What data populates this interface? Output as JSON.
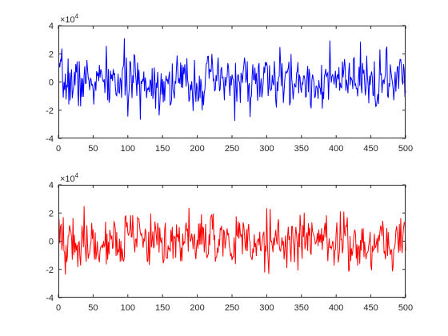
{
  "chart_data": [
    {
      "type": "line",
      "series_color": "#0000ff",
      "xlim": [
        0,
        500
      ],
      "ylim": [
        -40000,
        40000
      ],
      "xticks": [
        0,
        50,
        100,
        150,
        200,
        250,
        300,
        350,
        400,
        450,
        500
      ],
      "yticks": [
        -4,
        -2,
        0,
        2,
        4
      ],
      "y_exponent": {
        "base": "×10",
        "power": "4"
      },
      "grid": false,
      "amplitude_sd": 11000,
      "seed": 7
    },
    {
      "type": "line",
      "series_color": "#ff0000",
      "xlim": [
        0,
        500
      ],
      "ylim": [
        -40000,
        40000
      ],
      "xticks": [
        0,
        50,
        100,
        150,
        200,
        250,
        300,
        350,
        400,
        450,
        500
      ],
      "yticks": [
        -4,
        -2,
        0,
        2,
        4
      ],
      "y_exponent": {
        "base": "×10",
        "power": "4"
      },
      "grid": false,
      "amplitude_sd": 11000,
      "seed": 19
    }
  ]
}
